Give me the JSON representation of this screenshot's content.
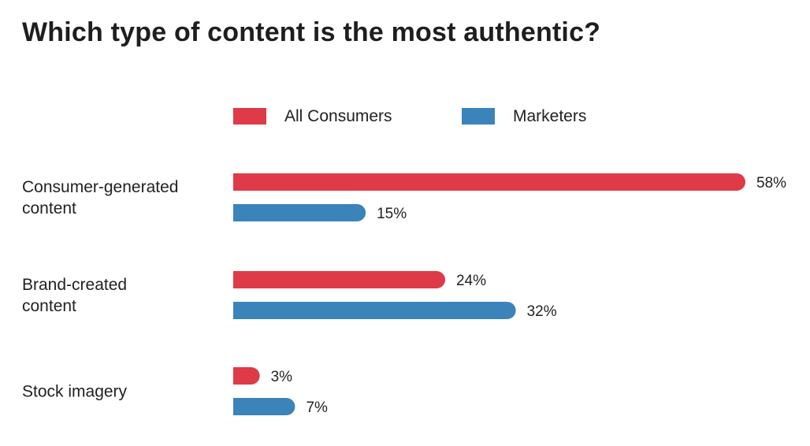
{
  "chart_data": {
    "type": "bar",
    "orientation": "horizontal",
    "title": "Which type of content is the most authentic?",
    "categories": [
      [
        "Consumer-generated",
        "content"
      ],
      [
        "Brand-created",
        "content"
      ],
      [
        "Stock imagery"
      ]
    ],
    "series": [
      {
        "name": "All Consumers",
        "color": "#de3a47",
        "values": [
          58,
          24,
          3
        ],
        "labels": [
          "58%",
          "24%",
          "3%"
        ]
      },
      {
        "name": "Marketers",
        "color": "#3a84ba",
        "values": [
          15,
          32,
          7
        ],
        "labels": [
          "15%",
          "32%",
          "7%"
        ]
      }
    ],
    "xlim": [
      0,
      58
    ],
    "unit": "%",
    "grid": false,
    "legend_position": "top"
  }
}
